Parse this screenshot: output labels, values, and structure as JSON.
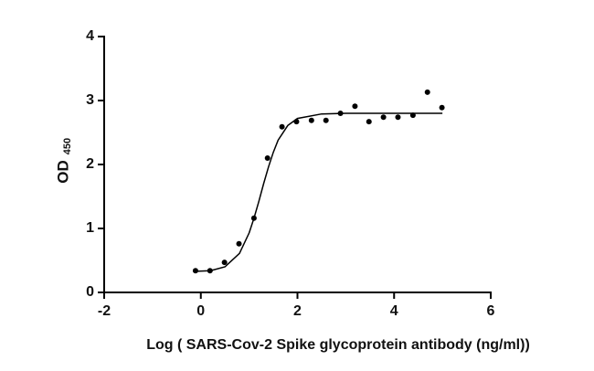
{
  "chart_data": {
    "type": "scatter",
    "x_label": "Log ( SARS-Cov-2 Spike glycoprotein antibody (ng/ml))",
    "y_label": "OD",
    "y_label_subscript": "450",
    "xlim": [
      -2,
      6
    ],
    "xticks": [
      -2,
      0,
      2,
      4,
      6
    ],
    "ylim": [
      0,
      4
    ],
    "yticks": [
      0,
      1,
      2,
      3,
      4
    ],
    "color": "#000000",
    "points": {
      "x": [
        -0.11,
        0.19,
        0.49,
        0.79,
        1.1,
        1.38,
        1.68,
        1.98,
        2.29,
        2.59,
        2.89,
        3.19,
        3.48,
        3.78,
        4.08,
        4.39,
        4.69,
        4.99
      ],
      "y": [
        0.34,
        0.34,
        0.47,
        0.76,
        1.16,
        2.1,
        2.59,
        2.67,
        2.69,
        2.69,
        2.8,
        2.91,
        2.67,
        2.74,
        2.74,
        2.77,
        3.13,
        2.89
      ]
    },
    "fit": {
      "x": [
        -0.1,
        0.2,
        0.5,
        0.8,
        1.0,
        1.1,
        1.2,
        1.3,
        1.4,
        1.5,
        1.6,
        1.8,
        2.0,
        2.5,
        3,
        4,
        5
      ],
      "y": [
        0.33,
        0.34,
        0.4,
        0.61,
        0.93,
        1.16,
        1.42,
        1.7,
        1.96,
        2.19,
        2.38,
        2.61,
        2.72,
        2.79,
        2.8,
        2.8,
        2.8
      ]
    }
  }
}
